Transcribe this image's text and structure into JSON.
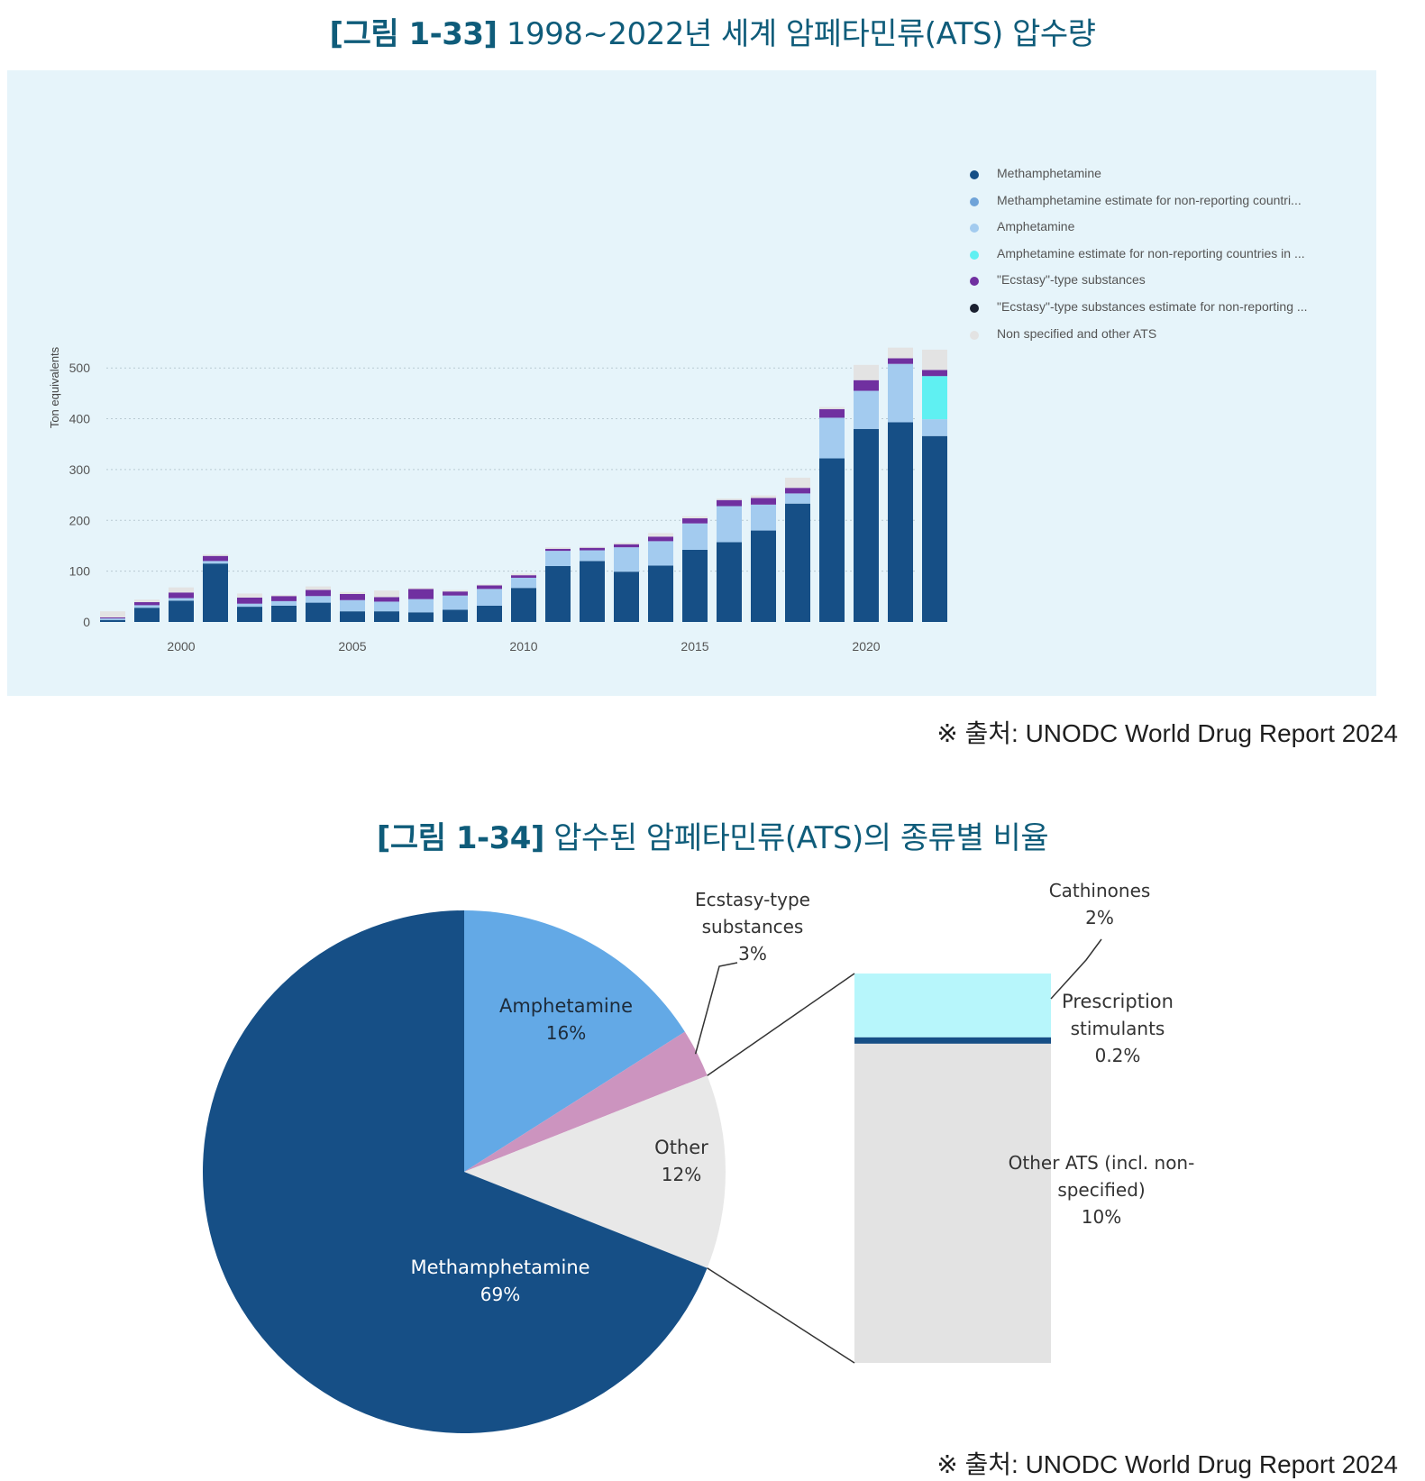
{
  "figure1": {
    "number": "[그림 1-33]",
    "title": "1998~2022년 세계 암페타민류(ATS) 압수량",
    "source": "※ 출처: UNODC World Drug Report 2024"
  },
  "figure2": {
    "number": "[그림 1-34]",
    "title": "압수된 암페타민류(ATS)의 종류별 비율",
    "source": "※ 출처: UNODC World Drug Report 2024"
  },
  "colors": {
    "meth": "#164f86",
    "meth_est": "#6fa3d8",
    "amph": "#a3cbef",
    "amph_est": "#5ff0f2",
    "ecstasy": "#7030a0",
    "ecstasy_est": "#1a2030",
    "other": "#e3e3e3",
    "pie_amph": "#63a9e6",
    "pie_ecstasy": "#cc94bf",
    "pie_other": "#e8e8e8",
    "cathinones": "#b7f6fb",
    "prescription": "#164f86"
  },
  "chart_data": [
    {
      "type": "bar",
      "stacked": true,
      "ylabel": "Ton equivalents",
      "xlabel": "",
      "ylim": [
        0,
        550
      ],
      "yticks": [
        0,
        100,
        200,
        300,
        400,
        500
      ],
      "xticks": [
        2000,
        2005,
        2010,
        2015,
        2020
      ],
      "grid": true,
      "legend_position": "top-right",
      "categories": [
        1998,
        1999,
        2000,
        2001,
        2002,
        2003,
        2004,
        2005,
        2006,
        2007,
        2008,
        2009,
        2010,
        2011,
        2012,
        2013,
        2014,
        2015,
        2016,
        2017,
        2018,
        2019,
        2020,
        2021,
        2022
      ],
      "series": [
        {
          "name": "Methamphetamine",
          "key": "meth",
          "values": [
            4,
            28,
            42,
            115,
            30,
            32,
            38,
            21,
            21,
            19,
            24,
            32,
            67,
            110,
            120,
            99,
            111,
            142,
            157,
            180,
            233,
            322,
            380,
            393,
            366
          ]
        },
        {
          "name": "Methamphetamine estimate for non-reporting countri...",
          "key": "meth_est",
          "values": [
            0,
            0,
            0,
            0,
            0,
            0,
            0,
            0,
            0,
            0,
            0,
            0,
            0,
            0,
            0,
            0,
            0,
            0,
            0,
            0,
            0,
            0,
            0,
            0,
            0
          ]
        },
        {
          "name": "Amphetamine",
          "key": "amph",
          "values": [
            3,
            5,
            5,
            5,
            6,
            9,
            13,
            22,
            19,
            26,
            28,
            33,
            20,
            30,
            21,
            48,
            48,
            52,
            71,
            51,
            20,
            80,
            75,
            115,
            33
          ]
        },
        {
          "name": "Amphetamine estimate for non-reporting countries in ...",
          "key": "amph_est",
          "values": [
            0,
            0,
            0,
            0,
            0,
            0,
            0,
            0,
            0,
            0,
            0,
            0,
            0,
            0,
            0,
            0,
            0,
            0,
            0,
            0,
            0,
            0,
            0,
            0,
            85
          ]
        },
        {
          "name": "\"Ecstasy\"-type substances",
          "key": "ecstasy",
          "values": [
            2,
            6,
            11,
            10,
            12,
            10,
            12,
            12,
            9,
            20,
            8,
            7,
            5,
            4,
            5,
            6,
            9,
            10,
            12,
            13,
            11,
            17,
            21,
            11,
            12
          ]
        },
        {
          "name": "\"Ecstasy\"-type substances estimate for non-reporting ...",
          "key": "ecstasy_est",
          "values": [
            0,
            0,
            0,
            0,
            0,
            0,
            0,
            0,
            0,
            0,
            0,
            0,
            0,
            0,
            0,
            0,
            0,
            0,
            0,
            0,
            0,
            0,
            0,
            0,
            0
          ]
        },
        {
          "name": "Non specified and other ATS",
          "key": "other",
          "values": [
            12,
            5,
            10,
            3,
            8,
            2,
            7,
            4,
            13,
            2,
            3,
            2,
            3,
            3,
            2,
            3,
            7,
            4,
            3,
            5,
            20,
            4,
            30,
            21,
            40
          ]
        }
      ]
    },
    {
      "type": "pie",
      "title": "",
      "slices": [
        {
          "label": "Methamphetamine",
          "value": 69,
          "text": "69%",
          "key": "meth"
        },
        {
          "label": "Amphetamine",
          "value": 16,
          "text": "16%",
          "key": "pie_amph"
        },
        {
          "label": "Ecstasy-type substances",
          "label_lines": [
            "Ecstasy-type",
            "substances"
          ],
          "value": 3,
          "text": "3%",
          "key": "pie_ecstasy"
        },
        {
          "label": "Other",
          "value": 12,
          "text": "12%",
          "key": "pie_other"
        }
      ],
      "breakdown": {
        "of": "Other",
        "segments": [
          {
            "label": "Cathinones",
            "label_lines": [
              "Cathinones"
            ],
            "value": 2,
            "text": "2%",
            "key": "cathinones"
          },
          {
            "label": "Prescription stimulants",
            "label_lines": [
              "Prescription",
              "stimulants"
            ],
            "value": 0.2,
            "text": "0.2%",
            "key": "prescription"
          },
          {
            "label": "Other ATS (incl. non-specified)",
            "label_lines": [
              "Other ATS (incl. non-",
              "specified)"
            ],
            "value": 10,
            "text": "10%",
            "key": "other"
          }
        ]
      }
    }
  ]
}
